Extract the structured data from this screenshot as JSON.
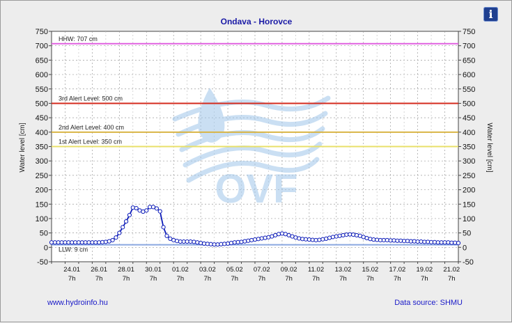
{
  "colors": {
    "title": "#1a1aa6",
    "series": "#0b1ab8",
    "hhw": "#e060e0",
    "alert3": "#d42a1c",
    "alert2": "#d9b444",
    "alert1": "#e8e06a",
    "llw": "#8aa8e0",
    "watermark": "#9fc6ea"
  },
  "info_icon": "info-icon",
  "watermark_text": "OVF",
  "footer": {
    "link": "www.hydroinfo.hu",
    "source": "Data source: SHMU"
  },
  "chart_data": {
    "type": "line",
    "title": "Ondava - Horovce",
    "ylabel": "Water level [cm]",
    "ylabel_right": "Water level [cm]",
    "ylim": [
      -50,
      750
    ],
    "yticks": [
      -50,
      0,
      50,
      100,
      150,
      200,
      250,
      300,
      350,
      400,
      450,
      500,
      550,
      600,
      650,
      700,
      750
    ],
    "xlim": [
      0,
      30
    ],
    "xticks": [
      {
        "x": 1.5,
        "label": "24.01",
        "sub": "7h"
      },
      {
        "x": 3.5,
        "label": "26.01",
        "sub": "7h"
      },
      {
        "x": 5.5,
        "label": "28.01",
        "sub": "7h"
      },
      {
        "x": 7.5,
        "label": "30.01",
        "sub": "7h"
      },
      {
        "x": 9.5,
        "label": "01.02",
        "sub": "7h"
      },
      {
        "x": 11.5,
        "label": "03.02",
        "sub": "7h"
      },
      {
        "x": 13.5,
        "label": "05.02",
        "sub": "7h"
      },
      {
        "x": 15.5,
        "label": "07.02",
        "sub": "7h"
      },
      {
        "x": 17.5,
        "label": "09.02",
        "sub": "7h"
      },
      {
        "x": 19.5,
        "label": "11.02",
        "sub": "7h"
      },
      {
        "x": 21.5,
        "label": "13.02",
        "sub": "7h"
      },
      {
        "x": 23.5,
        "label": "15.02",
        "sub": "7h"
      },
      {
        "x": 25.5,
        "label": "17.02",
        "sub": "7h"
      },
      {
        "x": 27.5,
        "label": "19.02",
        "sub": "7h"
      },
      {
        "x": 29.5,
        "label": "21.02",
        "sub": "7h"
      }
    ],
    "thresholds": [
      {
        "label": "HHW: 707 cm",
        "value": 707,
        "color_key": "hhw"
      },
      {
        "label": "3rd Alert Level: 500 cm",
        "value": 500,
        "color_key": "alert3"
      },
      {
        "label": "2nd Alert Level: 400 cm",
        "value": 400,
        "color_key": "alert2"
      },
      {
        "label": "1st Alert Level: 350 cm",
        "value": 350,
        "color_key": "alert1"
      },
      {
        "label": "LLW: 9 cm",
        "value": 9,
        "color_key": "llw"
      }
    ],
    "grid": true,
    "series": [
      {
        "x": [
          0.0,
          0.25,
          0.5,
          0.75,
          1.0,
          1.25,
          1.5,
          1.75,
          2.0,
          2.25,
          2.5,
          2.75,
          3.0,
          3.25,
          3.5,
          3.75,
          4.0,
          4.25,
          4.5,
          4.75,
          5.0,
          5.25,
          5.5,
          5.75,
          6.0,
          6.25,
          6.5,
          6.75,
          7.0,
          7.25,
          7.5,
          7.75,
          8.0,
          8.25,
          8.5,
          8.75,
          9.0,
          9.25,
          9.5,
          9.75,
          10.0,
          10.25,
          10.5,
          10.75,
          11.0,
          11.25,
          11.5,
          11.75,
          12.0,
          12.25,
          12.5,
          12.75,
          13.0,
          13.25,
          13.5,
          13.75,
          14.0,
          14.25,
          14.5,
          14.75,
          15.0,
          15.25,
          15.5,
          15.75,
          16.0,
          16.25,
          16.5,
          16.75,
          17.0,
          17.25,
          17.5,
          17.75,
          18.0,
          18.25,
          18.5,
          18.75,
          19.0,
          19.25,
          19.5,
          19.75,
          20.0,
          20.25,
          20.5,
          20.75,
          21.0,
          21.25,
          21.5,
          21.75,
          22.0,
          22.25,
          22.5,
          22.75,
          23.0,
          23.25,
          23.5,
          23.75,
          24.0,
          24.25,
          24.5,
          24.75,
          25.0,
          25.25,
          25.5,
          25.75,
          26.0,
          26.25,
          26.5,
          26.75,
          27.0,
          27.25,
          27.5,
          27.75,
          28.0,
          28.25,
          28.5,
          28.75,
          29.0,
          29.25,
          29.5,
          29.75,
          30.0
        ],
        "y": [
          17,
          17,
          17,
          17,
          17,
          17,
          17,
          17,
          17,
          17,
          17,
          17,
          17,
          17,
          17,
          18,
          19,
          21,
          25,
          34,
          50,
          70,
          90,
          112,
          138,
          136,
          128,
          124,
          128,
          140,
          140,
          135,
          125,
          70,
          40,
          30,
          25,
          22,
          20,
          20,
          20,
          20,
          19,
          17,
          15,
          13,
          12,
          11,
          10,
          10,
          11,
          12,
          13,
          15,
          17,
          18,
          19,
          21,
          23,
          25,
          27,
          29,
          31,
          33,
          35,
          38,
          42,
          46,
          48,
          46,
          42,
          38,
          34,
          31,
          29,
          28,
          27,
          26,
          25,
          26,
          28,
          30,
          33,
          36,
          38,
          40,
          42,
          44,
          45,
          44,
          42,
          40,
          36,
          32,
          29,
          27,
          26,
          25,
          25,
          25,
          24,
          24,
          23,
          23,
          22,
          22,
          21,
          21,
          20,
          20,
          19,
          19,
          18,
          18,
          17,
          17,
          17,
          17,
          16,
          16,
          15
        ]
      }
    ]
  }
}
